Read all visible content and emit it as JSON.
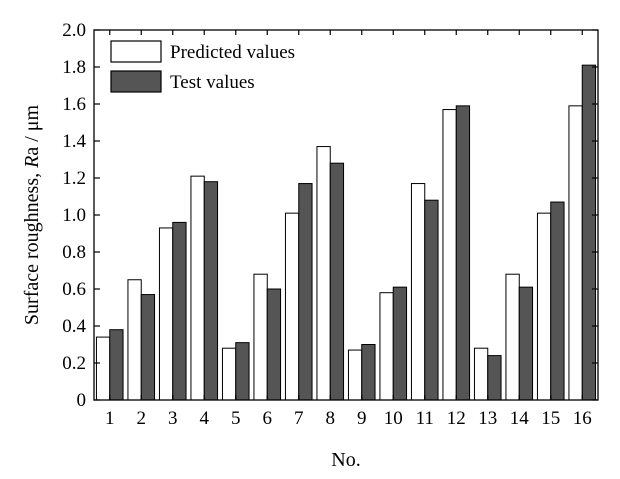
{
  "chart_data": {
    "type": "bar",
    "xlabel": "No.",
    "ylabel_prefix": "Surface roughness, ",
    "ylabel_italic": "R",
    "ylabel_suffix": "a / μm",
    "categories": [
      "1",
      "2",
      "3",
      "4",
      "5",
      "6",
      "7",
      "8",
      "9",
      "10",
      "11",
      "12",
      "13",
      "14",
      "15",
      "16"
    ],
    "ylim": [
      0,
      2.0
    ],
    "yticks": [
      0,
      0.2,
      0.4,
      0.6,
      0.8,
      1.0,
      1.2,
      1.4,
      1.6,
      1.8,
      2.0
    ],
    "ytick_labels": [
      "0",
      "0.2",
      "0.4",
      "0.6",
      "0.8",
      "1.0",
      "1.2",
      "1.4",
      "1.6",
      "1.8",
      "2.0"
    ],
    "legend_position": "top-left",
    "grid": false,
    "series": [
      {
        "name": "Predicted values",
        "color": "#ffffff",
        "values": [
          0.34,
          0.65,
          0.93,
          1.21,
          0.28,
          0.68,
          1.01,
          1.37,
          0.27,
          0.58,
          1.17,
          1.57,
          0.28,
          0.68,
          1.01,
          1.59
        ]
      },
      {
        "name": "Test values",
        "color": "#555555",
        "values": [
          0.38,
          0.57,
          0.96,
          1.18,
          0.31,
          0.6,
          1.17,
          1.28,
          0.3,
          0.61,
          1.08,
          1.59,
          0.24,
          0.61,
          1.07,
          1.81
        ]
      }
    ]
  }
}
